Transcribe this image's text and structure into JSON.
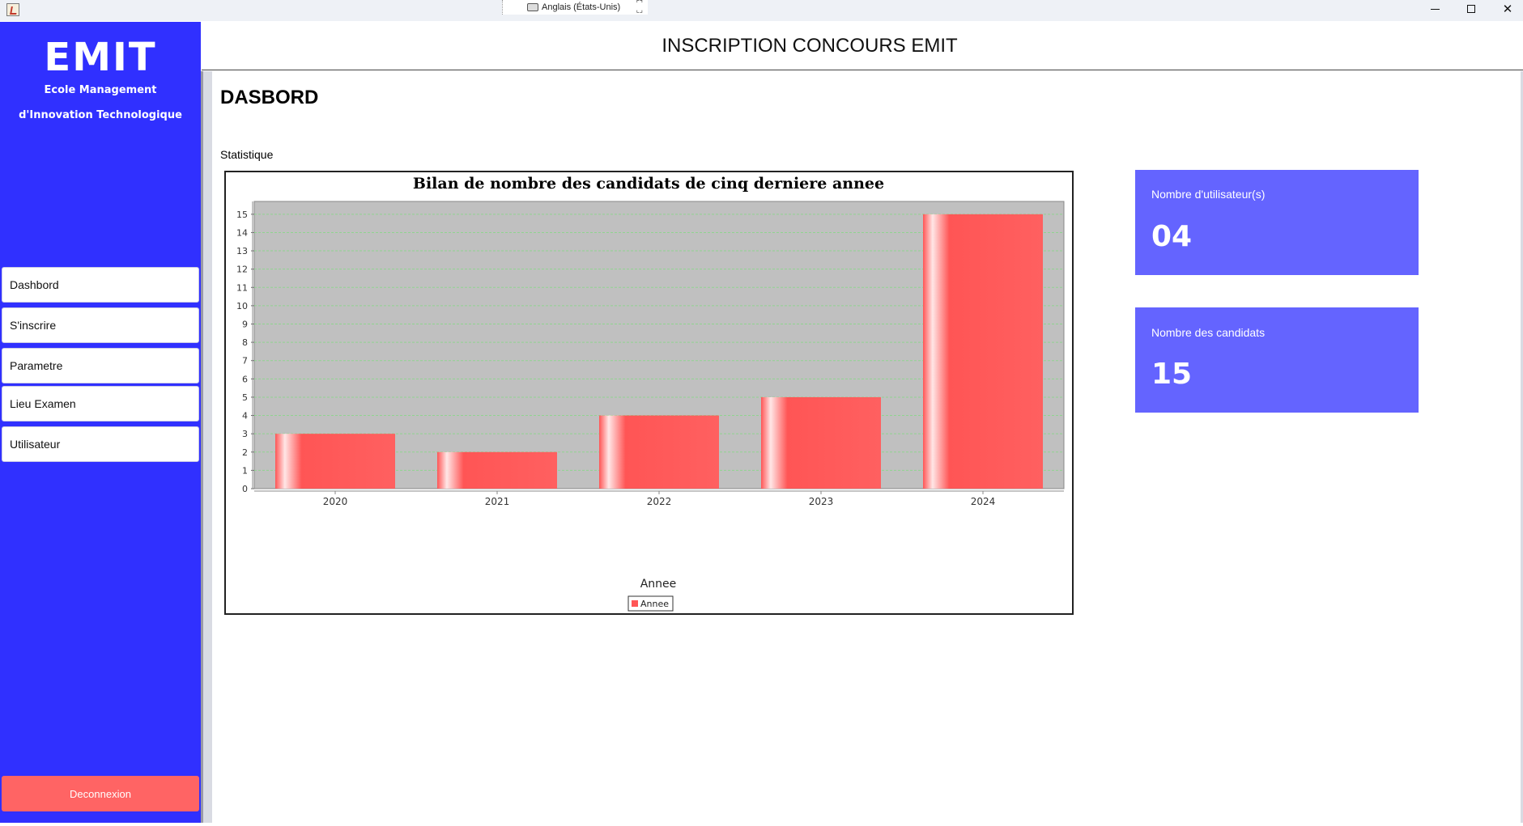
{
  "window": {
    "ime_label": "Anglais (États-Unis)",
    "controls": [
      "minimize",
      "maximize",
      "close"
    ]
  },
  "sidebar": {
    "logo": "EMIT",
    "subtitle_line1": "Ecole Management",
    "subtitle_line2": "d'Innovation Technologique",
    "items": [
      {
        "label": "Dashbord"
      },
      {
        "label": "S'inscrire"
      },
      {
        "label": "Parametre"
      },
      {
        "label": "Lieu Examen"
      },
      {
        "label": "Utilisateur"
      }
    ],
    "logout_label": "Deconnexion",
    "colors": {
      "background": "#3030ff",
      "logout": "#ff6464"
    }
  },
  "header": {
    "title": "INSCRIPTION CONCOURS EMIT"
  },
  "main": {
    "page_title": "DASBORD",
    "section_label": "Statistique"
  },
  "chart_data": {
    "type": "bar",
    "title": "Bilan de nombre des candidats de cinq derniere annee",
    "xlabel": "Annee",
    "ylabel": "",
    "categories": [
      "2020",
      "2021",
      "2022",
      "2023",
      "2024"
    ],
    "series": [
      {
        "name": "Annee",
        "values": [
          3,
          2,
          4,
          5,
          15
        ],
        "color": "#ff5555"
      }
    ],
    "ylim": [
      0,
      15.7
    ],
    "yticks": [
      0,
      1,
      2,
      3,
      4,
      5,
      6,
      7,
      8,
      9,
      10,
      11,
      12,
      13,
      14,
      15
    ],
    "grid": true,
    "legend": "bottom-center",
    "plot_background": "#c0c0c0",
    "grid_color": "#8fd48f"
  },
  "cards": [
    {
      "label": "Nombre d'utilisateur(s)",
      "value": "04"
    },
    {
      "label": "Nombre des candidats",
      "value": "15"
    }
  ],
  "colors": {
    "card": "#6464ff"
  }
}
